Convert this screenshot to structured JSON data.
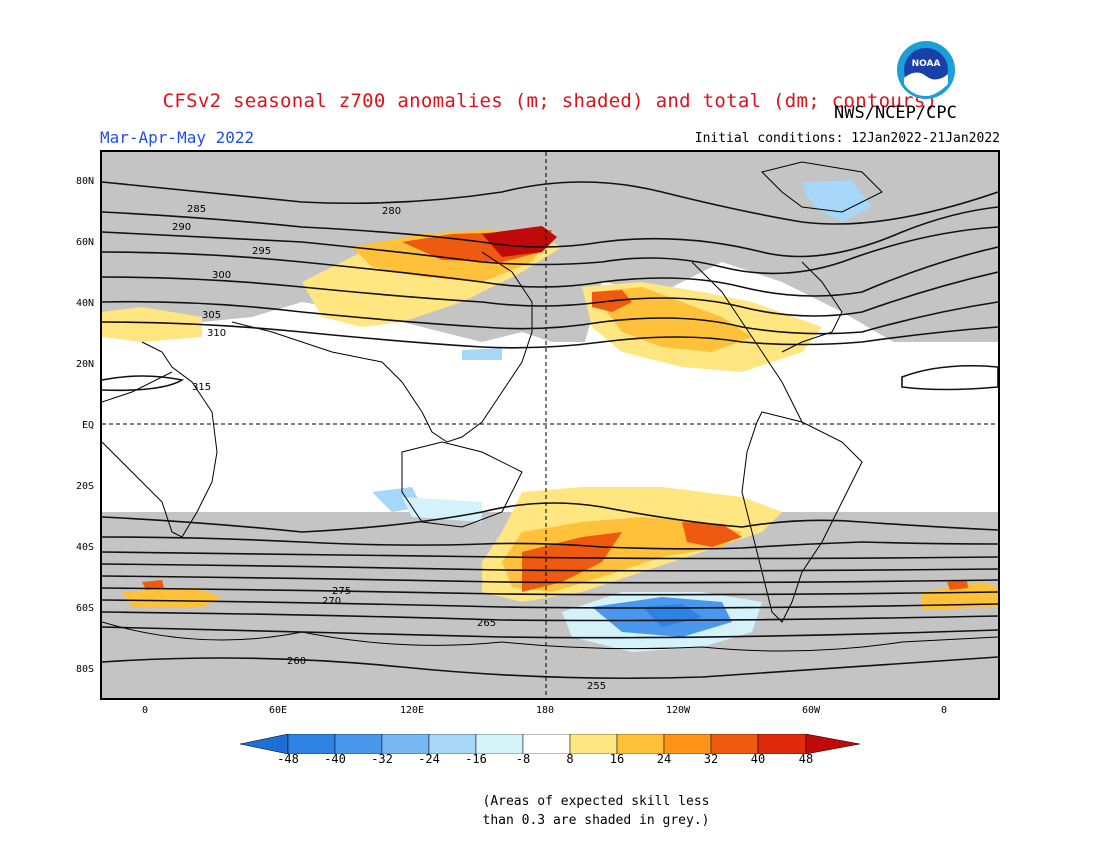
{
  "header": {
    "title": "CFSv2 seasonal z700 anomalies (m; shaded) and total (dm; contours)",
    "agency": "NWS/NCEP/CPC",
    "season": "Mar-Apr-May 2022",
    "initial_conditions": "Initial conditions: 12Jan2022-21Jan2022"
  },
  "logo": {
    "text": "NOAA",
    "icon": "noaa-logo-icon"
  },
  "map": {
    "lat_labels": [
      "80N",
      "60N",
      "40N",
      "20N",
      "EQ",
      "20S",
      "40S",
      "60S",
      "80S"
    ],
    "lon_labels": [
      "0",
      "60E",
      "120E",
      "180",
      "120W",
      "60W",
      "0"
    ],
    "contour_labels": [
      "285",
      "290",
      "295",
      "300",
      "305",
      "310",
      "315",
      "280",
      "275",
      "270",
      "265",
      "260",
      "255"
    ]
  },
  "colorbar": {
    "labels": [
      "-48",
      "-40",
      "-32",
      "-24",
      "-16",
      "-8",
      "8",
      "16",
      "24",
      "32",
      "40",
      "48"
    ],
    "colors": [
      "#1e6ed6",
      "#2e82e4",
      "#4a98ee",
      "#78b8f4",
      "#a6d6f8",
      "#d4f2fa",
      "#ffffff",
      "#ffe680",
      "#ffc03a",
      "#ff9418",
      "#f05a10",
      "#e02a0a",
      "#c00a0a"
    ]
  },
  "note": {
    "line1": "(Areas of expected skill less",
    "line2": "than 0.3 are shaded in grey.)"
  }
}
